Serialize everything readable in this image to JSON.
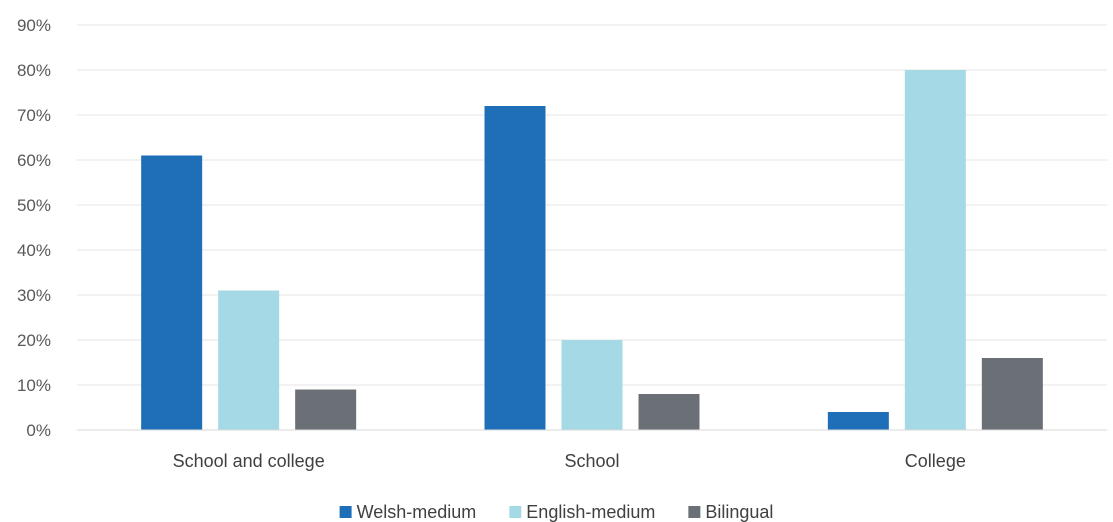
{
  "chart_data": {
    "type": "bar",
    "categories": [
      "School and college",
      "School",
      "College"
    ],
    "series": [
      {
        "name": "Welsh-medium",
        "color": "#1f6fb8",
        "values": [
          61,
          72,
          4
        ]
      },
      {
        "name": "English-medium",
        "color": "#a5d9e6",
        "values": [
          31,
          20,
          80
        ]
      },
      {
        "name": "Bilingual",
        "color": "#6b6f76",
        "values": [
          9,
          8,
          16
        ]
      }
    ],
    "yticks": [
      "0%",
      "10%",
      "20%",
      "30%",
      "40%",
      "50%",
      "60%",
      "70%",
      "80%",
      "90%"
    ],
    "ylim": [
      0,
      90
    ],
    "grid": true,
    "legend_position": "bottom"
  }
}
